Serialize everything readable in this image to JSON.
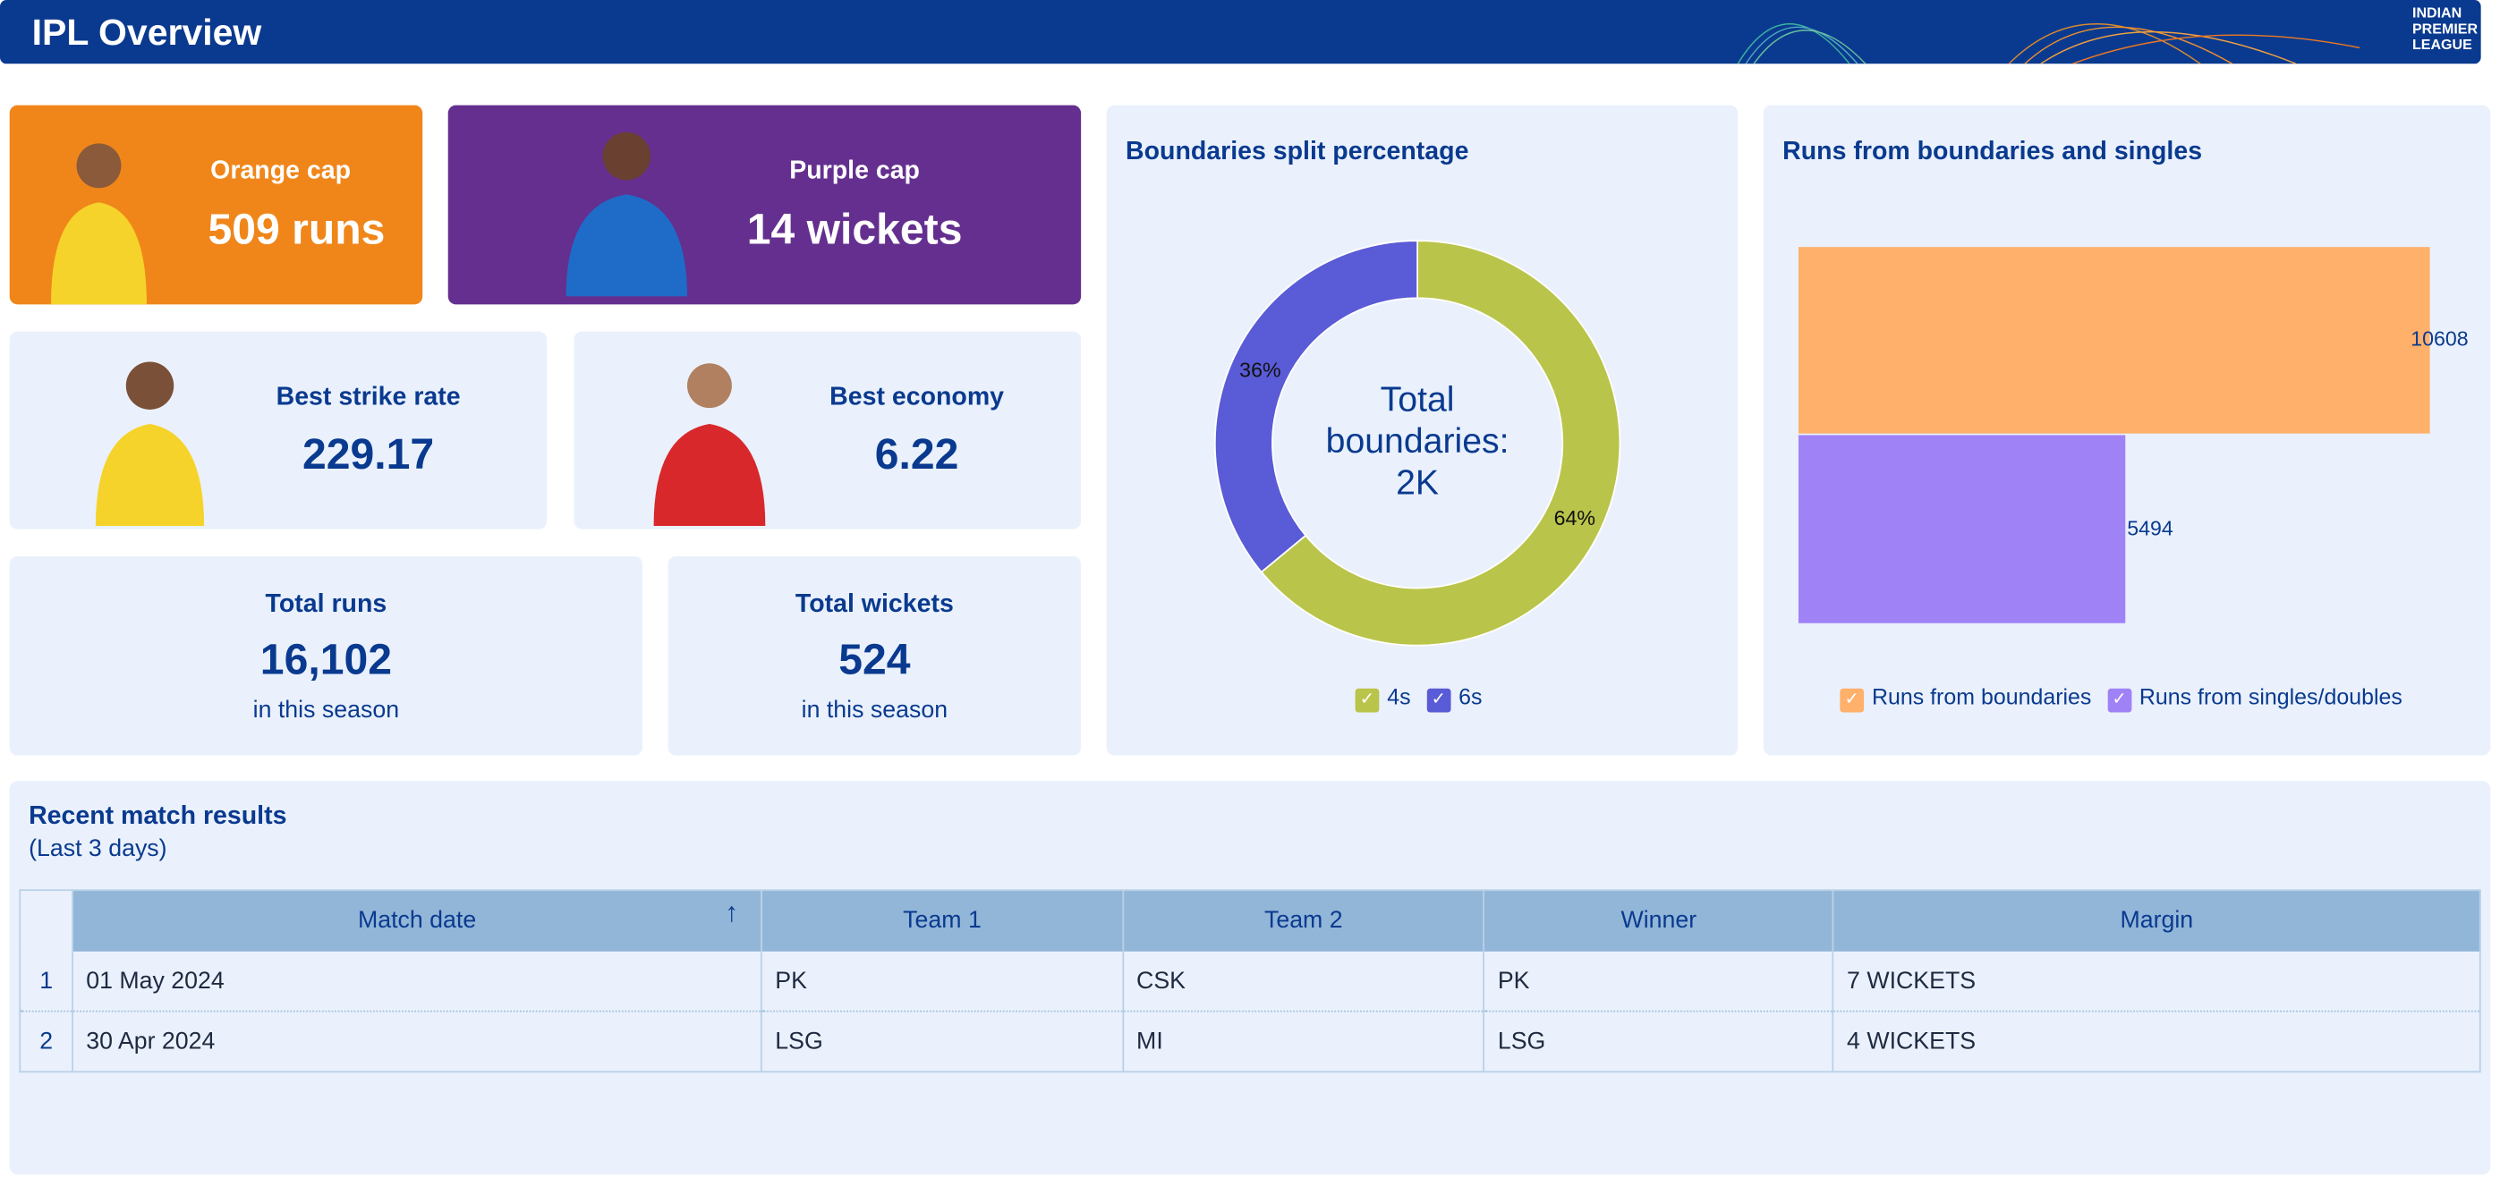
{
  "header": {
    "title": "IPL Overview",
    "logo_text": "INDIAN PREMIER LEAGUE"
  },
  "orange_cap": {
    "label": "Orange cap",
    "value": "509 runs",
    "color": "#f0861a"
  },
  "purple_cap": {
    "label": "Purple cap",
    "value": "14 wickets",
    "color": "#642f8f"
  },
  "strike_rate": {
    "label": "Best strike rate",
    "value": "229.17"
  },
  "economy": {
    "label": "Best economy",
    "value": "6.22"
  },
  "total_runs": {
    "label": "Total runs",
    "value": "16,102",
    "sub": "in this season"
  },
  "total_wickets": {
    "label": "Total wickets",
    "value": "524",
    "sub": "in this season"
  },
  "chart_data": [
    {
      "type": "pie",
      "title": "Boundaries split percentage",
      "center_label": "Total boundaries: 2K",
      "slices": [
        {
          "name": "4s",
          "value": 64,
          "label": "64%",
          "color": "#b9c44a"
        },
        {
          "name": "6s",
          "value": 36,
          "label": "36%",
          "color": "#5a5bd6"
        }
      ]
    },
    {
      "type": "bar",
      "orientation": "horizontal",
      "title": "Runs from boundaries and singles",
      "series": [
        {
          "name": "Runs from boundaries",
          "value": 10608,
          "color": "#ffb06a"
        },
        {
          "name": "Runs from singles/doubles",
          "value": 5494,
          "color": "#a082f7"
        }
      ]
    }
  ],
  "table": {
    "title": "Recent match results",
    "subtitle": "(Last 3 days)",
    "columns": [
      "Match date",
      "Team 1",
      "Team 2",
      "Winner",
      "Margin"
    ],
    "rows": [
      {
        "n": "1",
        "cells": [
          "01 May 2024",
          "PK",
          "CSK",
          "PK",
          "7 WICKETS"
        ]
      },
      {
        "n": "2",
        "cells": [
          "30 Apr 2024",
          "LSG",
          "MI",
          "LSG",
          "4 WICKETS"
        ]
      }
    ]
  }
}
